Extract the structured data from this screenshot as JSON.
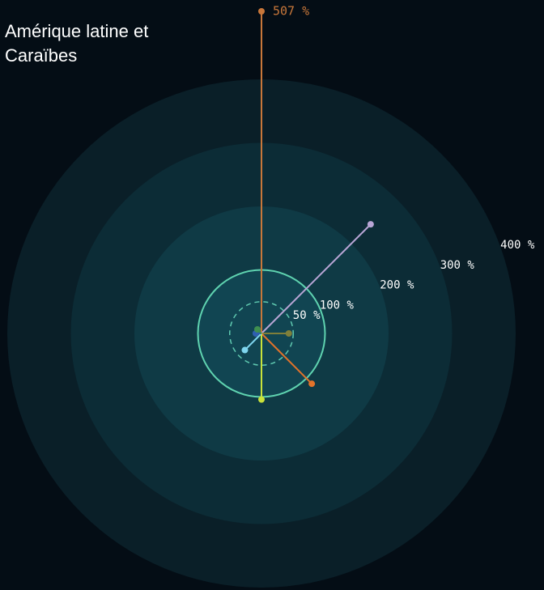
{
  "chart_data": {
    "type": "radial",
    "title": "Amérique latine et Caraïbes",
    "values": [
      507,
      243,
      43,
      112,
      104,
      37,
      9,
      9
    ],
    "value_labels": [
      "507 %",
      null,
      null,
      null,
      null,
      null,
      null,
      null
    ],
    "colors": [
      "#c8773a",
      "#b9a6d6",
      "#7f7f3a",
      "#e2732a",
      "#c9e23a",
      "#7fd6ef",
      "#2f5fb0",
      "#3f8f4f"
    ],
    "rlim": [
      0,
      400
    ],
    "rticks": [
      {
        "value": 50,
        "label": "50 %"
      },
      {
        "value": 100,
        "label": "100 %"
      },
      {
        "value": 200,
        "label": "200 %"
      },
      {
        "value": 300,
        "label": "300 %"
      },
      {
        "value": 400,
        "label": "400 %"
      }
    ]
  }
}
